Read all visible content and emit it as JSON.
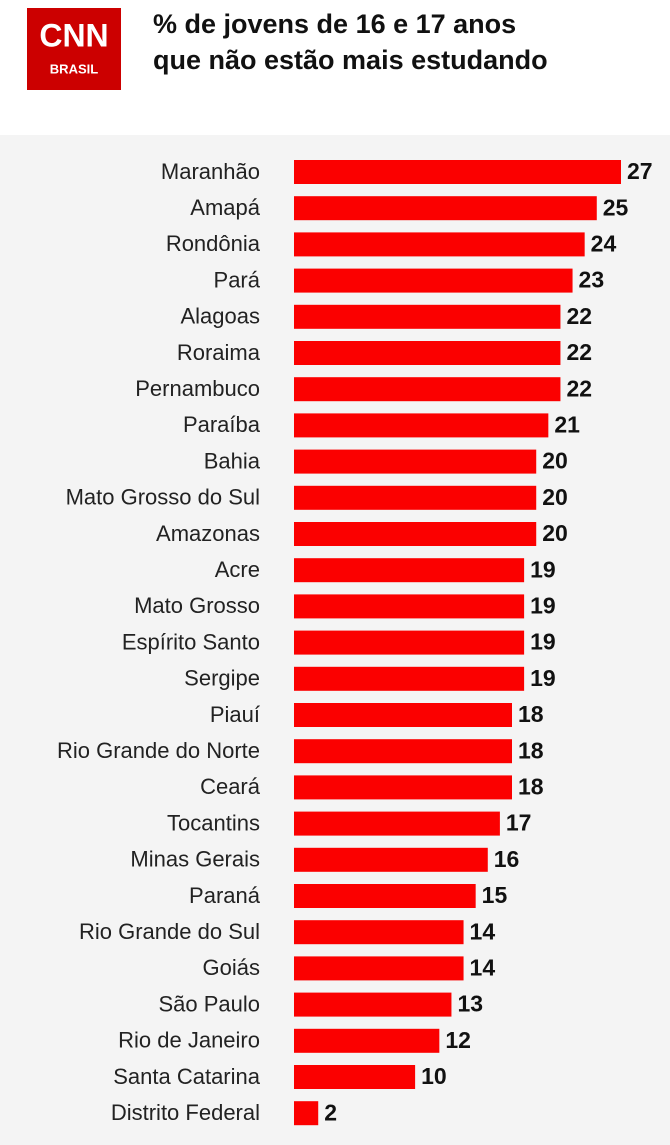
{
  "logo": {
    "brand": "CNN",
    "sub": "BRASIL"
  },
  "chart_data": {
    "type": "barh",
    "title": [
      "% de jovens de 16 e 17 anos",
      "que não estão mais estudando"
    ],
    "color": "#fb0000",
    "categories": [
      "Maranhão",
      "Amapá",
      "Rondônia",
      "Pará",
      "Alagoas",
      "Roraima",
      "Pernambuco",
      "Paraíba",
      "Bahia",
      "Mato Grosso do Sul",
      "Amazonas",
      "Acre",
      "Mato Grosso",
      "Espírito Santo",
      "Sergipe",
      "Piauí",
      "Rio Grande do Norte",
      "Ceará",
      "Tocantins",
      "Minas Gerais",
      "Paraná",
      "Rio Grande do Sul",
      "Goiás",
      "São Paulo",
      "Rio de Janeiro",
      "Santa Catarina",
      "Distrito Federal"
    ],
    "values": [
      27,
      25,
      24,
      23,
      22,
      22,
      22,
      21,
      20,
      20,
      20,
      19,
      19,
      19,
      19,
      18,
      18,
      18,
      17,
      16,
      15,
      14,
      14,
      13,
      12,
      10,
      2
    ]
  }
}
